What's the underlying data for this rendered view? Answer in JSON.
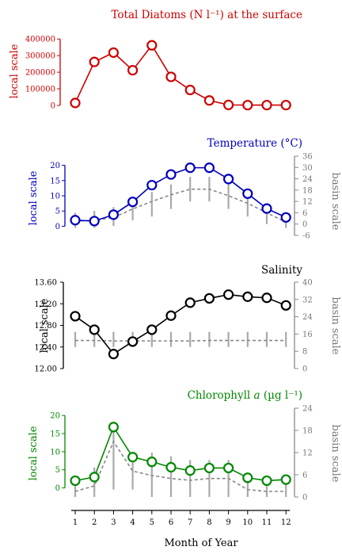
{
  "chart_data": [
    {
      "type": "line",
      "title": "Total Diatoms (N l⁻¹) at the surface",
      "ylabel_left": "local scale",
      "color": "#cc0000",
      "left_ticks": [
        "0",
        "100000",
        "200000",
        "300000",
        "400000"
      ],
      "left_ylim": [
        0,
        420000
      ],
      "x": [
        1,
        2,
        3,
        4,
        5,
        6,
        7,
        8,
        9,
        10,
        11,
        12
      ],
      "values": [
        15000,
        262000,
        318000,
        212000,
        362000,
        172000,
        93000,
        30000,
        3000,
        2000,
        2000,
        2000
      ]
    },
    {
      "type": "line",
      "title": "Temperature (°C)",
      "ylabel_left": "local scale",
      "ylabel_right": "basin scale",
      "color": "#0000bb",
      "left_ticks": [
        "0",
        "5",
        "10",
        "15",
        "20"
      ],
      "left_ylim": [
        -3,
        23
      ],
      "right_ticks": [
        "-6",
        "0",
        "6",
        "12",
        "18",
        "24",
        "30",
        "36"
      ],
      "right_ylim": [
        -6,
        36
      ],
      "x": [
        1,
        2,
        3,
        4,
        5,
        6,
        7,
        8,
        9,
        10,
        11,
        12
      ],
      "values": [
        2.0,
        1.7,
        3.8,
        8.0,
        13.5,
        17.0,
        19.2,
        19.2,
        15.5,
        10.7,
        5.8,
        2.9
      ],
      "basin_mean": [
        1.5,
        2.0,
        3.5,
        8.0,
        12.0,
        15.5,
        18.5,
        18.5,
        15.0,
        11.0,
        6.0,
        1.0
      ],
      "basin_range": [
        [
          -2,
          6
        ],
        [
          -2,
          7
        ],
        [
          -1,
          9
        ],
        [
          2,
          13
        ],
        [
          4,
          17
        ],
        [
          8,
          21
        ],
        [
          12,
          25
        ],
        [
          12,
          25
        ],
        [
          8,
          22
        ],
        [
          4,
          17
        ],
        [
          0,
          11
        ],
        [
          -2,
          6
        ]
      ]
    },
    {
      "type": "line",
      "title": "Salinity",
      "ylabel_left": "local scale",
      "ylabel_right": "basin scale",
      "color": "#000000",
      "left_ticks": [
        "12.00",
        "12.40",
        "12.80",
        "13.20",
        "13.60"
      ],
      "left_ylim": [
        12.0,
        13.6
      ],
      "right_ticks": [
        "0",
        "8",
        "16",
        "24",
        "32",
        "40"
      ],
      "right_ylim": [
        0,
        40
      ],
      "x": [
        1,
        2,
        3,
        4,
        5,
        6,
        7,
        8,
        9,
        10,
        11,
        12
      ],
      "values": [
        12.97,
        12.72,
        12.27,
        12.5,
        12.72,
        12.98,
        13.22,
        13.3,
        13.37,
        13.33,
        13.31,
        13.17
      ],
      "basin_mean": [
        13,
        13,
        12.8,
        12.8,
        12.8,
        12.8,
        12.8,
        13,
        13,
        13,
        13,
        13
      ],
      "basin_range": [
        [
          10,
          17
        ],
        [
          10,
          17
        ],
        [
          10,
          17
        ],
        [
          10,
          17
        ],
        [
          10,
          17
        ],
        [
          10,
          17
        ],
        [
          10,
          17
        ],
        [
          10,
          17
        ],
        [
          10,
          17
        ],
        [
          10,
          17
        ],
        [
          10,
          17
        ],
        [
          10,
          17
        ]
      ]
    },
    {
      "type": "line",
      "title": "Chlorophyll a (µg l⁻¹)",
      "title_parts": [
        "Chlorophyll ",
        "a",
        " (µg l⁻¹)"
      ],
      "ylabel_left": "local scale",
      "ylabel_right": "basin scale",
      "color": "#008800",
      "left_ticks": [
        "0",
        "5",
        "10",
        "15",
        "20"
      ],
      "left_ylim": [
        -2.5,
        22
      ],
      "right_ticks": [
        "0",
        "6",
        "12",
        "18",
        "24"
      ],
      "right_ylim": [
        0,
        24
      ],
      "x": [
        1,
        2,
        3,
        4,
        5,
        6,
        7,
        8,
        9,
        10,
        11,
        12
      ],
      "values": [
        2.0,
        3.0,
        16.8,
        8.5,
        7.2,
        5.7,
        4.8,
        5.5,
        5.5,
        2.8,
        2.0,
        2.3
      ],
      "basin_mean": [
        1.5,
        3.0,
        15.0,
        7.0,
        5.8,
        5.0,
        4.5,
        5.0,
        5.0,
        2.0,
        1.5,
        1.5
      ],
      "basin_range": [
        [
          0,
          3
        ],
        [
          0,
          8
        ],
        [
          2,
          20
        ],
        [
          2,
          12
        ],
        [
          0,
          12
        ],
        [
          0,
          11
        ],
        [
          0,
          10
        ],
        [
          0,
          10
        ],
        [
          0,
          10
        ],
        [
          0,
          5
        ],
        [
          0,
          4
        ],
        [
          0,
          4
        ]
      ]
    }
  ],
  "xaxis": {
    "label": "Month of Year",
    "ticks": [
      "1",
      "2",
      "3",
      "4",
      "5",
      "6",
      "7",
      "8",
      "9",
      "10",
      "11",
      "12"
    ]
  }
}
